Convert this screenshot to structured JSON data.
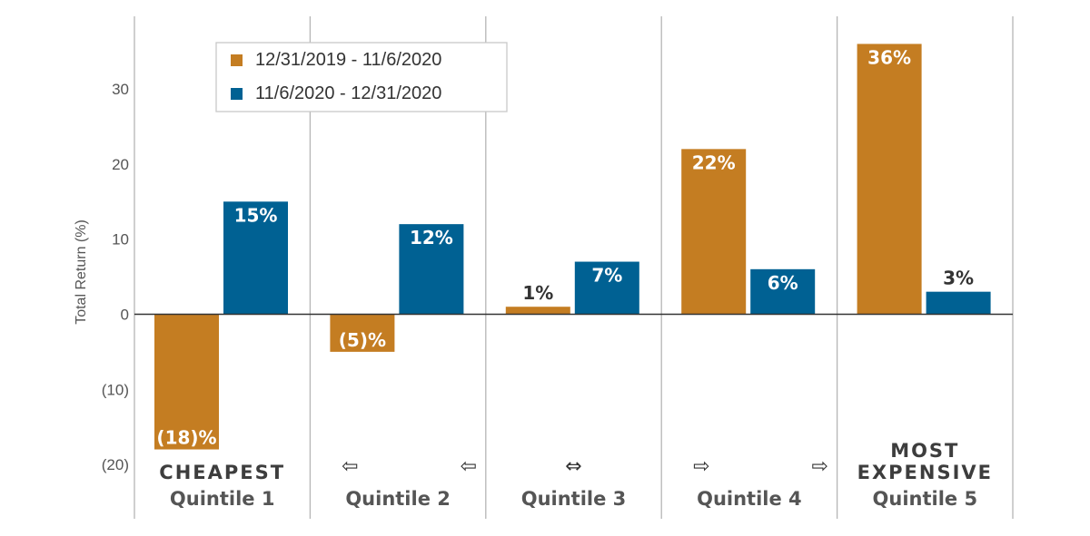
{
  "chart_data": {
    "type": "bar",
    "ylabel": "Total Return (%)",
    "ylim": [
      -22,
      39
    ],
    "yticks": [
      -20,
      -10,
      0,
      10,
      20,
      30
    ],
    "ytick_labels": [
      "(20)",
      "(10)",
      "0",
      "10",
      "20",
      "30"
    ],
    "categories": [
      "Quintile 1",
      "Quintile 2",
      "Quintile 3",
      "Quintile 4",
      "Quintile 5"
    ],
    "category_tags": [
      "CHEAPEST",
      "",
      "",
      "",
      "MOST\nEXPENSIVE"
    ],
    "category_arrows": [
      [],
      [
        "⇦",
        "⇦"
      ],
      [
        "⇔"
      ],
      [
        "⇨",
        "⇨"
      ],
      []
    ],
    "series": [
      {
        "name": "12/31/2019 - 11/6/2020",
        "color": "#C47D22",
        "values": [
          -18,
          -5,
          1,
          22,
          36
        ],
        "labels": [
          "(18)%",
          "(5)%",
          "1%",
          "22%",
          "36%"
        ]
      },
      {
        "name": "11/6/2020 - 12/31/2020",
        "color": "#006193",
        "values": [
          15,
          12,
          7,
          6,
          3
        ],
        "labels": [
          "15%",
          "12%",
          "7%",
          "6%",
          "3%"
        ]
      }
    ],
    "legend": "top-left",
    "grid": false
  }
}
